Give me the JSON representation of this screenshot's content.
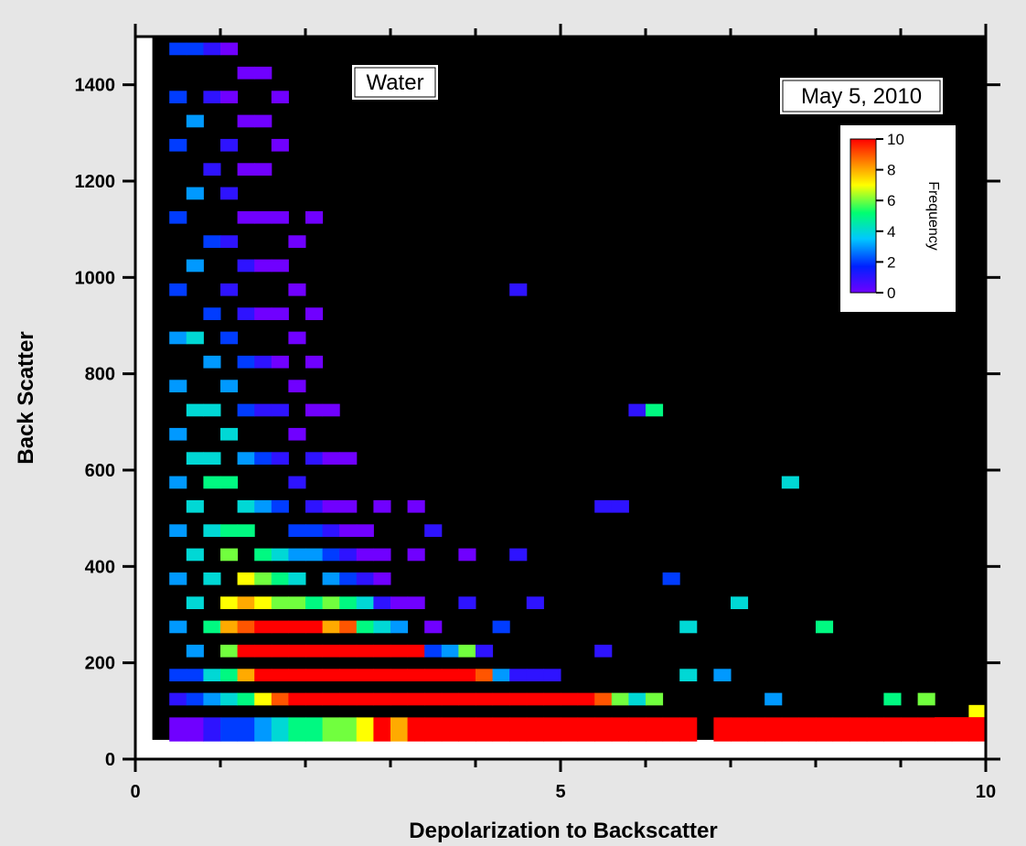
{
  "chart_data": {
    "type": "heatmap",
    "xlabel": "Depolarization to Backscatter",
    "ylabel": "Back Scatter",
    "xlim": [
      0,
      10
    ],
    "ylim": [
      0,
      1500
    ],
    "x_major_ticks": [
      0,
      5,
      10
    ],
    "x_minor_ticks": [
      1,
      2,
      3,
      4,
      6,
      7,
      8,
      9
    ],
    "y_major_ticks": [
      0,
      200,
      400,
      600,
      800,
      1000,
      1200,
      1400
    ],
    "annotations": [
      {
        "text": "Water",
        "position": "top-center"
      },
      {
        "text": "May 5, 2010",
        "position": "top-right"
      }
    ],
    "colorbar": {
      "label": "Frequency",
      "ticks": [
        0,
        2,
        4,
        6,
        8,
        10
      ],
      "range": [
        0,
        10
      ],
      "position": "top-right",
      "colors": [
        "#7000ff",
        "#0020ff",
        "#00c8ff",
        "#00ff70",
        "#ffff00",
        "#ff8000",
        "#ff0000"
      ]
    },
    "background_color": "#000000",
    "x_bin_width": 0.2,
    "y_bin_width": 25,
    "cells": [
      [
        0.4,
        1475,
        2
      ],
      [
        0.4,
        1375,
        2
      ],
      [
        0.4,
        1275,
        2
      ],
      [
        0.4,
        1125,
        2
      ],
      [
        0.4,
        975,
        2
      ],
      [
        0.4,
        875,
        3
      ],
      [
        0.4,
        775,
        3
      ],
      [
        0.4,
        675,
        3
      ],
      [
        0.4,
        575,
        3
      ],
      [
        0.4,
        475,
        3
      ],
      [
        0.4,
        375,
        3
      ],
      [
        0.4,
        275,
        3
      ],
      [
        0.4,
        175,
        2
      ],
      [
        0.4,
        125,
        1
      ],
      [
        0.4,
        62,
        0
      ],
      [
        0.6,
        1475,
        2
      ],
      [
        0.6,
        1325,
        3
      ],
      [
        0.6,
        1175,
        3
      ],
      [
        0.6,
        1025,
        3
      ],
      [
        0.6,
        875,
        4
      ],
      [
        0.6,
        725,
        4
      ],
      [
        0.6,
        625,
        4
      ],
      [
        0.6,
        525,
        4
      ],
      [
        0.6,
        425,
        4
      ],
      [
        0.6,
        325,
        4
      ],
      [
        0.6,
        225,
        3
      ],
      [
        0.6,
        175,
        2
      ],
      [
        0.6,
        125,
        2
      ],
      [
        0.6,
        62,
        0
      ],
      [
        0.8,
        1475,
        1
      ],
      [
        0.8,
        1375,
        1
      ],
      [
        0.8,
        1225,
        1
      ],
      [
        0.8,
        1075,
        2
      ],
      [
        0.8,
        925,
        2
      ],
      [
        0.8,
        825,
        3
      ],
      [
        0.8,
        725,
        4
      ],
      [
        0.8,
        625,
        4
      ],
      [
        0.8,
        575,
        5
      ],
      [
        0.8,
        475,
        4
      ],
      [
        0.8,
        375,
        4
      ],
      [
        0.8,
        275,
        5
      ],
      [
        0.8,
        175,
        4
      ],
      [
        0.8,
        125,
        3
      ],
      [
        0.8,
        62,
        1
      ],
      [
        1.0,
        1475,
        0
      ],
      [
        1.0,
        1375,
        0
      ],
      [
        1.0,
        1275,
        1
      ],
      [
        1.0,
        1175,
        1
      ],
      [
        1.0,
        1075,
        1
      ],
      [
        1.0,
        975,
        1
      ],
      [
        1.0,
        875,
        2
      ],
      [
        1.0,
        775,
        3
      ],
      [
        1.0,
        675,
        4
      ],
      [
        1.0,
        575,
        5
      ],
      [
        1.0,
        475,
        5
      ],
      [
        1.0,
        425,
        6
      ],
      [
        1.0,
        325,
        7
      ],
      [
        1.0,
        275,
        8
      ],
      [
        1.0,
        225,
        6
      ],
      [
        1.0,
        175,
        5
      ],
      [
        1.0,
        125,
        4
      ],
      [
        1.0,
        62,
        2
      ],
      [
        1.2,
        1425,
        0
      ],
      [
        1.2,
        1325,
        0
      ],
      [
        1.2,
        1225,
        0
      ],
      [
        1.2,
        1125,
        0
      ],
      [
        1.2,
        1025,
        1
      ],
      [
        1.2,
        925,
        1
      ],
      [
        1.2,
        825,
        2
      ],
      [
        1.2,
        725,
        2
      ],
      [
        1.2,
        625,
        3
      ],
      [
        1.2,
        525,
        4
      ],
      [
        1.2,
        475,
        5
      ],
      [
        1.2,
        375,
        7
      ],
      [
        1.2,
        325,
        8
      ],
      [
        1.2,
        275,
        9
      ],
      [
        1.2,
        225,
        10
      ],
      [
        1.2,
        175,
        8
      ],
      [
        1.2,
        125,
        5
      ],
      [
        1.2,
        62,
        2
      ],
      [
        1.4,
        1425,
        0
      ],
      [
        1.4,
        1325,
        0
      ],
      [
        1.4,
        1225,
        0
      ],
      [
        1.4,
        1125,
        0
      ],
      [
        1.4,
        1025,
        0
      ],
      [
        1.4,
        925,
        0
      ],
      [
        1.4,
        825,
        1
      ],
      [
        1.4,
        725,
        1
      ],
      [
        1.4,
        625,
        2
      ],
      [
        1.4,
        525,
        3
      ],
      [
        1.4,
        425,
        5
      ],
      [
        1.4,
        375,
        6
      ],
      [
        1.4,
        325,
        7
      ],
      [
        1.4,
        275,
        10
      ],
      [
        1.4,
        225,
        10
      ],
      [
        1.4,
        175,
        10
      ],
      [
        1.4,
        125,
        7
      ],
      [
        1.4,
        62,
        3
      ],
      [
        1.6,
        1375,
        0
      ],
      [
        1.6,
        1275,
        0
      ],
      [
        1.6,
        1125,
        0
      ],
      [
        1.6,
        1025,
        0
      ],
      [
        1.6,
        925,
        0
      ],
      [
        1.6,
        825,
        0
      ],
      [
        1.6,
        725,
        1
      ],
      [
        1.6,
        625,
        1
      ],
      [
        1.6,
        525,
        2
      ],
      [
        1.6,
        425,
        4
      ],
      [
        1.6,
        375,
        5
      ],
      [
        1.6,
        325,
        6
      ],
      [
        1.6,
        275,
        10
      ],
      [
        1.6,
        225,
        10
      ],
      [
        1.6,
        175,
        10
      ],
      [
        1.6,
        125,
        9
      ],
      [
        1.6,
        62,
        4
      ],
      [
        1.8,
        1075,
        0
      ],
      [
        1.8,
        975,
        0
      ],
      [
        1.8,
        875,
        0
      ],
      [
        1.8,
        775,
        0
      ],
      [
        1.8,
        675,
        0
      ],
      [
        1.8,
        575,
        1
      ],
      [
        1.8,
        475,
        2
      ],
      [
        1.8,
        425,
        3
      ],
      [
        1.8,
        375,
        4
      ],
      [
        1.8,
        325,
        6
      ],
      [
        1.8,
        275,
        10
      ],
      [
        1.8,
        225,
        10
      ],
      [
        1.8,
        175,
        10
      ],
      [
        1.8,
        125,
        10
      ],
      [
        1.8,
        62,
        5
      ],
      [
        2.0,
        1125,
        0
      ],
      [
        2.0,
        925,
        0
      ],
      [
        2.0,
        825,
        0
      ],
      [
        2.0,
        725,
        0
      ],
      [
        2.0,
        625,
        1
      ],
      [
        2.0,
        525,
        1
      ],
      [
        2.0,
        475,
        2
      ],
      [
        2.0,
        425,
        3
      ],
      [
        2.0,
        325,
        5
      ],
      [
        2.0,
        275,
        10
      ],
      [
        2.0,
        225,
        10
      ],
      [
        2.0,
        175,
        10
      ],
      [
        2.0,
        125,
        10
      ],
      [
        2.0,
        62,
        5
      ],
      [
        2.2,
        725,
        0
      ],
      [
        2.2,
        625,
        0
      ],
      [
        2.2,
        525,
        0
      ],
      [
        2.2,
        475,
        1
      ],
      [
        2.2,
        425,
        2
      ],
      [
        2.2,
        375,
        3
      ],
      [
        2.2,
        325,
        6
      ],
      [
        2.2,
        275,
        8
      ],
      [
        2.2,
        225,
        10
      ],
      [
        2.2,
        175,
        10
      ],
      [
        2.2,
        125,
        10
      ],
      [
        2.2,
        62,
        6
      ],
      [
        2.4,
        625,
        0
      ],
      [
        2.4,
        525,
        0
      ],
      [
        2.4,
        475,
        0
      ],
      [
        2.4,
        425,
        1
      ],
      [
        2.4,
        375,
        2
      ],
      [
        2.4,
        325,
        5
      ],
      [
        2.4,
        275,
        9
      ],
      [
        2.4,
        225,
        10
      ],
      [
        2.4,
        175,
        10
      ],
      [
        2.4,
        125,
        10
      ],
      [
        2.4,
        62,
        6
      ],
      [
        2.6,
        475,
        0
      ],
      [
        2.6,
        425,
        0
      ],
      [
        2.6,
        375,
        1
      ],
      [
        2.6,
        325,
        4
      ],
      [
        2.6,
        275,
        5
      ],
      [
        2.6,
        225,
        10
      ],
      [
        2.6,
        175,
        10
      ],
      [
        2.6,
        125,
        10
      ],
      [
        2.6,
        62,
        7
      ],
      [
        2.8,
        525,
        0
      ],
      [
        2.8,
        425,
        0
      ],
      [
        2.8,
        375,
        0
      ],
      [
        2.8,
        325,
        1
      ],
      [
        2.8,
        275,
        4
      ],
      [
        2.8,
        225,
        10
      ],
      [
        2.8,
        175,
        10
      ],
      [
        2.8,
        125,
        10
      ],
      [
        2.8,
        62,
        10
      ],
      [
        3.0,
        325,
        0
      ],
      [
        3.0,
        275,
        3
      ],
      [
        3.0,
        225,
        10
      ],
      [
        3.0,
        175,
        10
      ],
      [
        3.0,
        125,
        10
      ],
      [
        3.0,
        62,
        8
      ],
      [
        3.2,
        525,
        0
      ],
      [
        3.2,
        425,
        0
      ],
      [
        3.2,
        325,
        0
      ],
      [
        3.2,
        225,
        10
      ],
      [
        3.2,
        175,
        10
      ],
      [
        3.2,
        125,
        10
      ],
      [
        3.2,
        62,
        10
      ],
      [
        3.4,
        475,
        1
      ],
      [
        3.4,
        275,
        0
      ],
      [
        3.4,
        225,
        2
      ],
      [
        3.4,
        175,
        10
      ],
      [
        3.4,
        125,
        10
      ],
      [
        3.4,
        62,
        10
      ],
      [
        3.6,
        225,
        3
      ],
      [
        3.6,
        175,
        10
      ],
      [
        3.6,
        125,
        10
      ],
      [
        3.6,
        62,
        10
      ],
      [
        3.8,
        425,
        0
      ],
      [
        3.8,
        325,
        1
      ],
      [
        3.8,
        225,
        6
      ],
      [
        3.8,
        175,
        10
      ],
      [
        3.8,
        125,
        10
      ],
      [
        3.8,
        62,
        10
      ],
      [
        4.0,
        225,
        1
      ],
      [
        4.0,
        175,
        9
      ],
      [
        4.0,
        125,
        10
      ],
      [
        4.0,
        62,
        10
      ],
      [
        4.2,
        275,
        2
      ],
      [
        4.2,
        175,
        3
      ],
      [
        4.2,
        125,
        10
      ],
      [
        4.2,
        62,
        10
      ],
      [
        4.4,
        975,
        1
      ],
      [
        4.4,
        425,
        1
      ],
      [
        4.4,
        175,
        1
      ],
      [
        4.4,
        125,
        10
      ],
      [
        4.4,
        62,
        10
      ],
      [
        4.6,
        325,
        1
      ],
      [
        4.6,
        175,
        1
      ],
      [
        4.6,
        125,
        10
      ],
      [
        4.6,
        62,
        10
      ],
      [
        4.8,
        175,
        1
      ],
      [
        4.8,
        125,
        10
      ],
      [
        4.8,
        62,
        10
      ],
      [
        5.0,
        125,
        10
      ],
      [
        5.0,
        62,
        10
      ],
      [
        5.2,
        125,
        10
      ],
      [
        5.2,
        62,
        10
      ],
      [
        5.4,
        525,
        1
      ],
      [
        5.4,
        225,
        1
      ],
      [
        5.4,
        125,
        9
      ],
      [
        5.4,
        62,
        10
      ],
      [
        5.6,
        525,
        1
      ],
      [
        5.6,
        125,
        6
      ],
      [
        5.6,
        62,
        10
      ],
      [
        5.8,
        725,
        1
      ],
      [
        5.8,
        125,
        4
      ],
      [
        5.8,
        62,
        10
      ],
      [
        6.0,
        725,
        5
      ],
      [
        6.0,
        125,
        6
      ],
      [
        6.0,
        62,
        10
      ],
      [
        6.2,
        375,
        2
      ],
      [
        6.2,
        62,
        10
      ],
      [
        6.4,
        275,
        4
      ],
      [
        6.4,
        175,
        4
      ],
      [
        6.4,
        62,
        10
      ],
      [
        6.8,
        175,
        3
      ],
      [
        6.8,
        62,
        10
      ],
      [
        7.0,
        325,
        4
      ],
      [
        7.0,
        62,
        10
      ],
      [
        7.2,
        62,
        10
      ],
      [
        7.4,
        125,
        3
      ],
      [
        7.4,
        62,
        10
      ],
      [
        7.6,
        575,
        4
      ],
      [
        7.6,
        62,
        10
      ],
      [
        7.8,
        62,
        10
      ],
      [
        8.0,
        275,
        5
      ],
      [
        8.0,
        62,
        10
      ],
      [
        8.2,
        62,
        10
      ],
      [
        8.4,
        62,
        10
      ],
      [
        8.6,
        62,
        10
      ],
      [
        8.8,
        125,
        5
      ],
      [
        8.8,
        62,
        10
      ],
      [
        9.0,
        62,
        10
      ],
      [
        9.2,
        125,
        6
      ],
      [
        9.2,
        62,
        10
      ],
      [
        9.4,
        62,
        10
      ],
      [
        9.6,
        62,
        10
      ],
      [
        9.8,
        100,
        7
      ],
      [
        9.8,
        62,
        10
      ]
    ]
  }
}
